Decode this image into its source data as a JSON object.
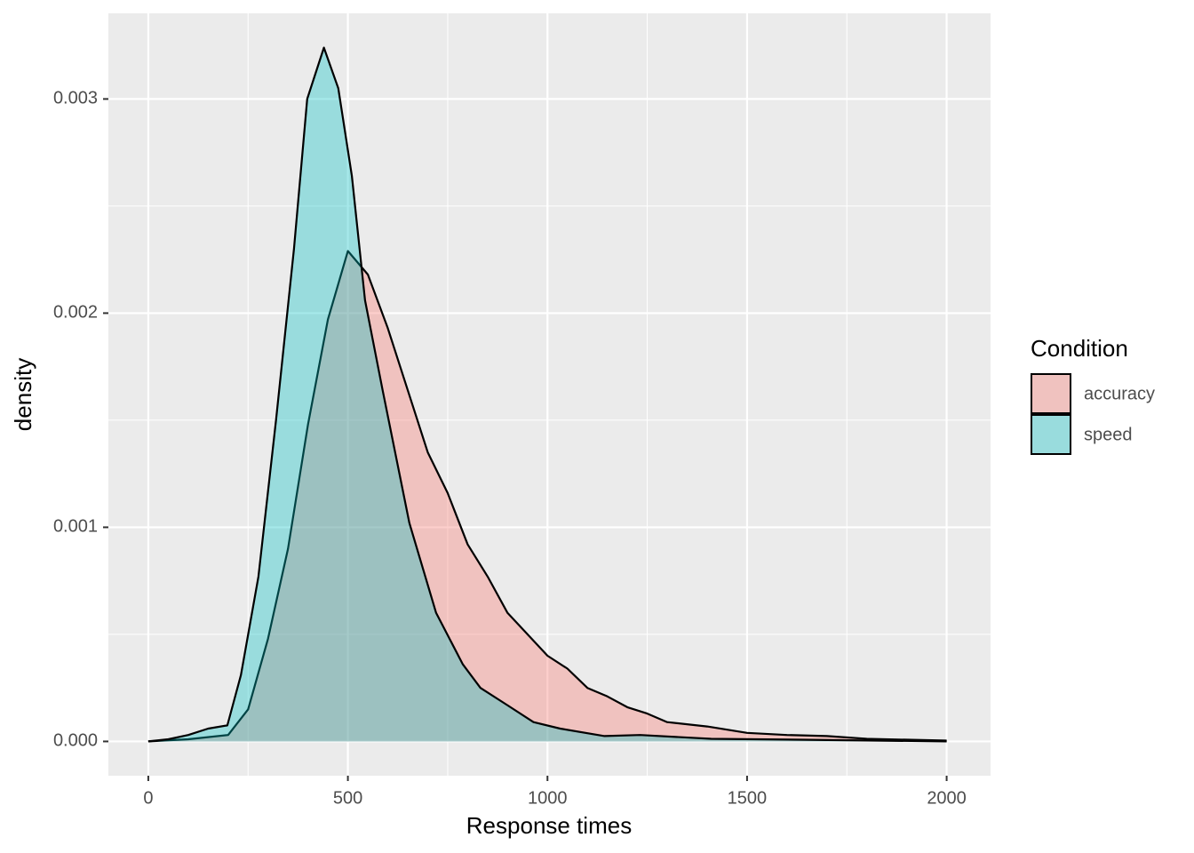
{
  "chart_data": {
    "type": "density",
    "xlabel": "Response times",
    "ylabel": "density",
    "legend_title": "Condition",
    "xlim": [
      -100,
      2110
    ],
    "ylim": [
      -0.00016,
      0.0034
    ],
    "xticks": [
      0,
      500,
      1000,
      1500,
      2000
    ],
    "yticks": [
      {
        "value": 0,
        "label": "0.000"
      },
      0.001,
      0.002,
      0.003
    ],
    "x_minor_ticks": [
      250,
      750,
      1250,
      1750
    ],
    "y_minor_ticks": [
      0.0005,
      0.0015,
      0.0025
    ],
    "grid": true,
    "legend": "right",
    "series": [
      {
        "name": "accuracy",
        "color": "#F8766D",
        "x": [
          0,
          100,
          200,
          250,
          300,
          350,
          400,
          450,
          500,
          550,
          600,
          650,
          700,
          750,
          800,
          850,
          900,
          950,
          1000,
          1050,
          1100,
          1150,
          1200,
          1250,
          1300,
          1400,
          1500,
          1600,
          1700,
          1800,
          2000
        ],
        "values": [
          0,
          1e-05,
          3e-05,
          0.00015,
          0.00048,
          0.0009,
          0.00148,
          0.00197,
          0.00229,
          0.00218,
          0.00193,
          0.00164,
          0.00135,
          0.00116,
          0.00092,
          0.00077,
          0.0006,
          0.0005,
          0.0004,
          0.00034,
          0.00025,
          0.00021,
          0.00016,
          0.00013,
          9e-05,
          7e-05,
          4e-05,
          3e-05,
          2.5e-05,
          1.2e-05,
          4e-06
        ]
      },
      {
        "name": "speed",
        "color": "#00BFC4",
        "x": [
          0,
          50,
          100,
          150,
          198,
          232,
          276,
          320,
          365,
          398,
          440,
          476,
          510,
          543,
          587,
          654,
          721,
          788,
          832,
          899,
          965,
          1032,
          1143,
          1232,
          1410,
          1633,
          2000
        ],
        "values": [
          0,
          1e-05,
          3e-05,
          6e-05,
          7.5e-05,
          0.00031,
          0.00077,
          0.0015,
          0.0023,
          0.003,
          0.00324,
          0.00305,
          0.00264,
          0.00206,
          0.00164,
          0.00102,
          0.0006,
          0.00036,
          0.00025,
          0.00017,
          9e-05,
          6e-05,
          2.5e-05,
          3e-05,
          1.2e-05,
          8e-06,
          0
        ]
      }
    ]
  }
}
